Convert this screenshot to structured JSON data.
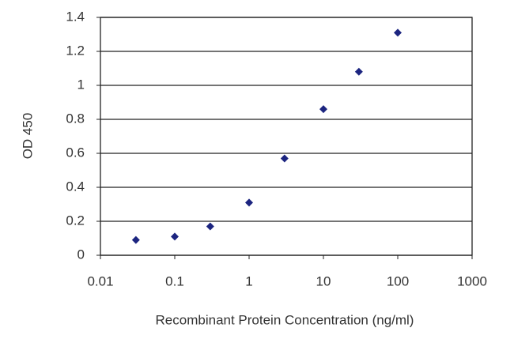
{
  "chart_data": {
    "type": "line",
    "x_label": "Recombinant Protein Concentration (ng/ml)",
    "y_label": "OD 450",
    "x": [
      0.03,
      0.1,
      0.3,
      1,
      3,
      10,
      30,
      100
    ],
    "series": [
      {
        "color": "#3b4ba8",
        "marker_color": "#1c2580",
        "values": [
          0.09,
          0.11,
          0.17,
          0.31,
          0.57,
          0.86,
          1.08,
          1.31
        ]
      }
    ],
    "xlim": [
      0.01,
      1000
    ],
    "xticks": [
      0.01,
      0.1,
      1,
      10,
      100,
      1000
    ],
    "xscale": "log",
    "ylim": [
      0,
      1.4
    ],
    "yticks": [
      0,
      0.2,
      0.4,
      0.6,
      0.8,
      1,
      1.2,
      1.4
    ],
    "grid": true
  }
}
